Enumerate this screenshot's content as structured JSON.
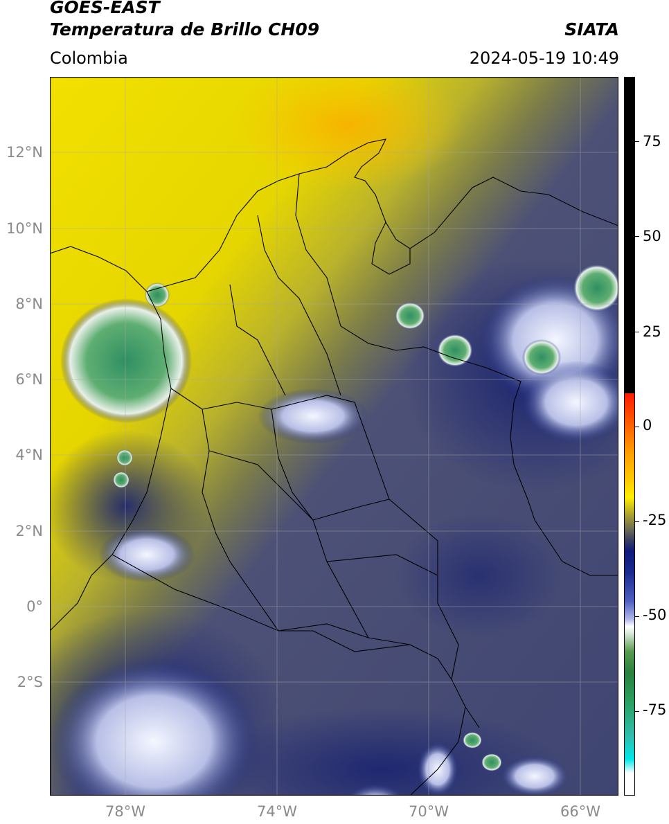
{
  "header": {
    "title_line1": "GOES-EAST",
    "title_line2": "Temperatura de Brillo CH09",
    "brand": "SIATA",
    "region": "Colombia",
    "datetime": "2024-05-19 10:49"
  },
  "map": {
    "lon_range": [
      -80,
      -65
    ],
    "lat_range": [
      -5,
      14
    ],
    "lat_ticks": [
      {
        "value": 12,
        "label": "12°N"
      },
      {
        "value": 10,
        "label": "10°N"
      },
      {
        "value": 8,
        "label": "8°N"
      },
      {
        "value": 6,
        "label": "6°N"
      },
      {
        "value": 4,
        "label": "4°N"
      },
      {
        "value": 2,
        "label": "2°N"
      },
      {
        "value": 0,
        "label": "0°"
      },
      {
        "value": -2,
        "label": "2°S"
      }
    ],
    "lon_ticks": [
      {
        "value": -78,
        "label": "78°W"
      },
      {
        "value": -74,
        "label": "74°W"
      },
      {
        "value": -70,
        "label": "70°W"
      },
      {
        "value": -66,
        "label": "66°W"
      }
    ],
    "colors": {
      "warm_yellow": "#f4e000",
      "warm_orange": "#f7b800",
      "olive": "#8a8a3a",
      "slate": "#4a4f78",
      "navy": "#14206e",
      "cloud_white": "#e8ecff",
      "cold_green": "#3f9a5a"
    }
  },
  "colorbar": {
    "range": [
      -95,
      90
    ],
    "ticks": [
      {
        "value": 75,
        "label": "75"
      },
      {
        "value": 50,
        "label": "50"
      },
      {
        "value": 25,
        "label": "25"
      },
      {
        "value": 0,
        "label": "0"
      },
      {
        "value": -25,
        "label": "-25"
      },
      {
        "value": -50,
        "label": "-50"
      },
      {
        "value": -75,
        "label": "-75"
      }
    ]
  }
}
